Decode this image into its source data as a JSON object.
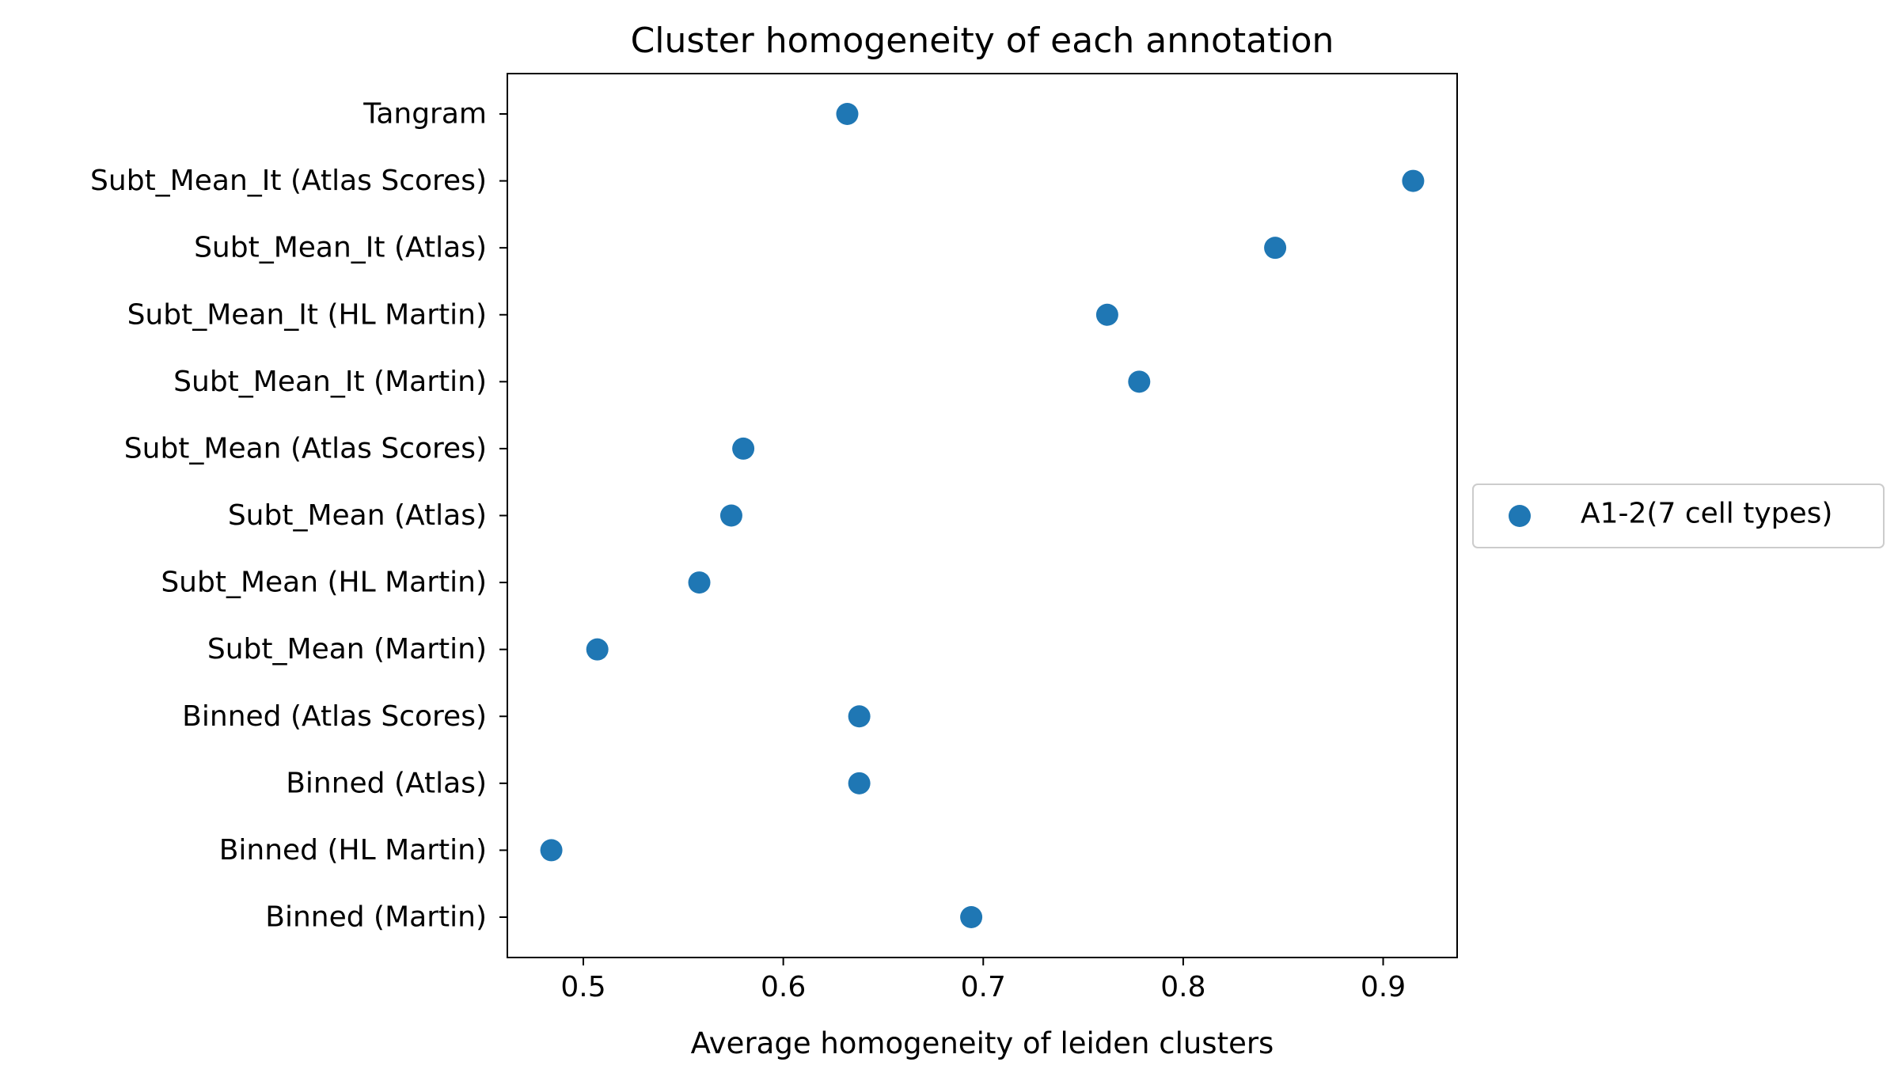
{
  "chart_data": {
    "type": "scatter",
    "title": "Cluster homogeneity of each annotation",
    "xlabel": "Average homogeneity of leiden clusters",
    "ylabel": "",
    "xlim": [
      0.462,
      0.937
    ],
    "xticks": [
      0.5,
      0.6,
      0.7,
      0.8,
      0.9
    ],
    "xtick_labels": [
      "0.5",
      "0.6",
      "0.7",
      "0.8",
      "0.9"
    ],
    "categories": [
      "Tangram",
      "Subt_Mean_It (Atlas Scores)",
      "Subt_Mean_It (Atlas)",
      "Subt_Mean_It (HL Martin)",
      "Subt_Mean_It (Martin)",
      "Subt_Mean (Atlas Scores)",
      "Subt_Mean (Atlas)",
      "Subt_Mean (HL Martin)",
      "Subt_Mean (Martin)",
      "Binned (Atlas Scores)",
      "Binned (Atlas)",
      "Binned (HL Martin)",
      "Binned (Martin)"
    ],
    "series": [
      {
        "name": "A1-2(7 cell types)",
        "color": "#1f77b4",
        "values": [
          0.632,
          0.915,
          0.846,
          0.762,
          0.778,
          0.58,
          0.574,
          0.558,
          0.507,
          0.638,
          0.638,
          0.484,
          0.694
        ]
      }
    ],
    "grid": false,
    "legend": "outside-right"
  }
}
